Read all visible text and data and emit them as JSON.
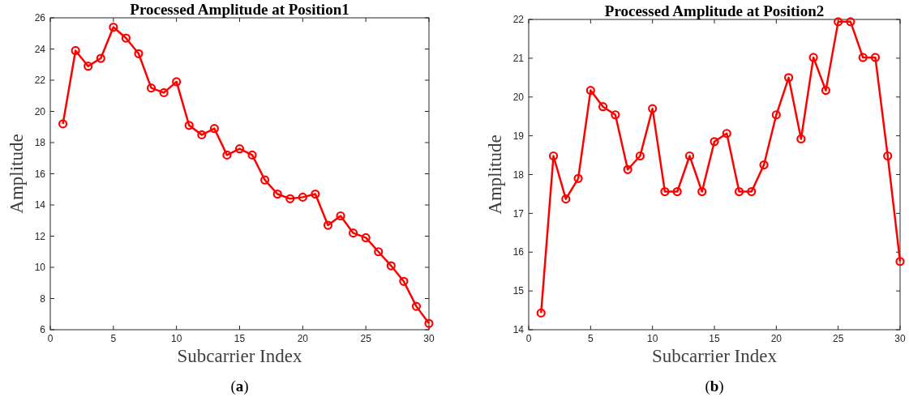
{
  "chart_data": [
    {
      "type": "line",
      "title": "Processed Amplitude at Position1",
      "xlabel": "Subcarrier Index",
      "ylabel": "Amplitude",
      "annotations": [
        "(a)"
      ],
      "x": [
        1,
        2,
        3,
        4,
        5,
        6,
        7,
        8,
        9,
        10,
        11,
        12,
        13,
        14,
        15,
        16,
        17,
        18,
        19,
        20,
        21,
        22,
        23,
        24,
        25,
        26,
        27,
        28,
        29,
        30
      ],
      "series": [
        {
          "color": "#ff0000",
          "values": [
            19.2,
            23.9,
            22.9,
            23.4,
            25.4,
            24.7,
            23.7,
            21.5,
            21.2,
            21.9,
            19.1,
            18.5,
            18.9,
            17.2,
            17.6,
            17.2,
            15.6,
            14.7,
            14.4,
            14.5,
            14.7,
            12.7,
            13.3,
            12.2,
            11.9,
            11.0,
            10.1,
            9.1,
            7.5,
            6.4
          ]
        }
      ],
      "xlim": [
        0,
        30
      ],
      "xticks": [
        0,
        5,
        10,
        15,
        20,
        25,
        30
      ],
      "ylim": [
        6,
        26
      ],
      "yticks": [
        6,
        8,
        10,
        12,
        14,
        16,
        18,
        20,
        22,
        24,
        26
      ],
      "marker": "circle",
      "grid": false
    },
    {
      "type": "line",
      "title": "Processed Amplitude at Position2",
      "xlabel": "Subcarrier Index",
      "ylabel": "Amplitude",
      "annotations": [
        "(b)"
      ],
      "x": [
        1,
        2,
        3,
        4,
        5,
        6,
        7,
        8,
        9,
        10,
        11,
        12,
        13,
        14,
        15,
        16,
        17,
        18,
        19,
        20,
        21,
        22,
        23,
        24,
        25,
        26,
        27,
        28,
        29,
        30
      ],
      "series": [
        {
          "color": "#ff0000",
          "values": [
            14.43,
            18.48,
            17.37,
            17.9,
            20.17,
            19.75,
            19.54,
            18.13,
            18.48,
            19.7,
            17.56,
            17.56,
            18.48,
            17.56,
            18.85,
            19.06,
            17.56,
            17.56,
            18.25,
            19.54,
            20.5,
            18.92,
            21.02,
            20.17,
            21.94,
            21.94,
            21.02,
            21.02,
            18.48,
            15.76
          ]
        }
      ],
      "xlim": [
        0,
        30
      ],
      "xticks": [
        0,
        5,
        10,
        15,
        20,
        25,
        30
      ],
      "ylim": [
        14,
        22
      ],
      "yticks": [
        14,
        15,
        16,
        17,
        18,
        19,
        20,
        21,
        22
      ],
      "marker": "circle",
      "grid": false
    }
  ]
}
